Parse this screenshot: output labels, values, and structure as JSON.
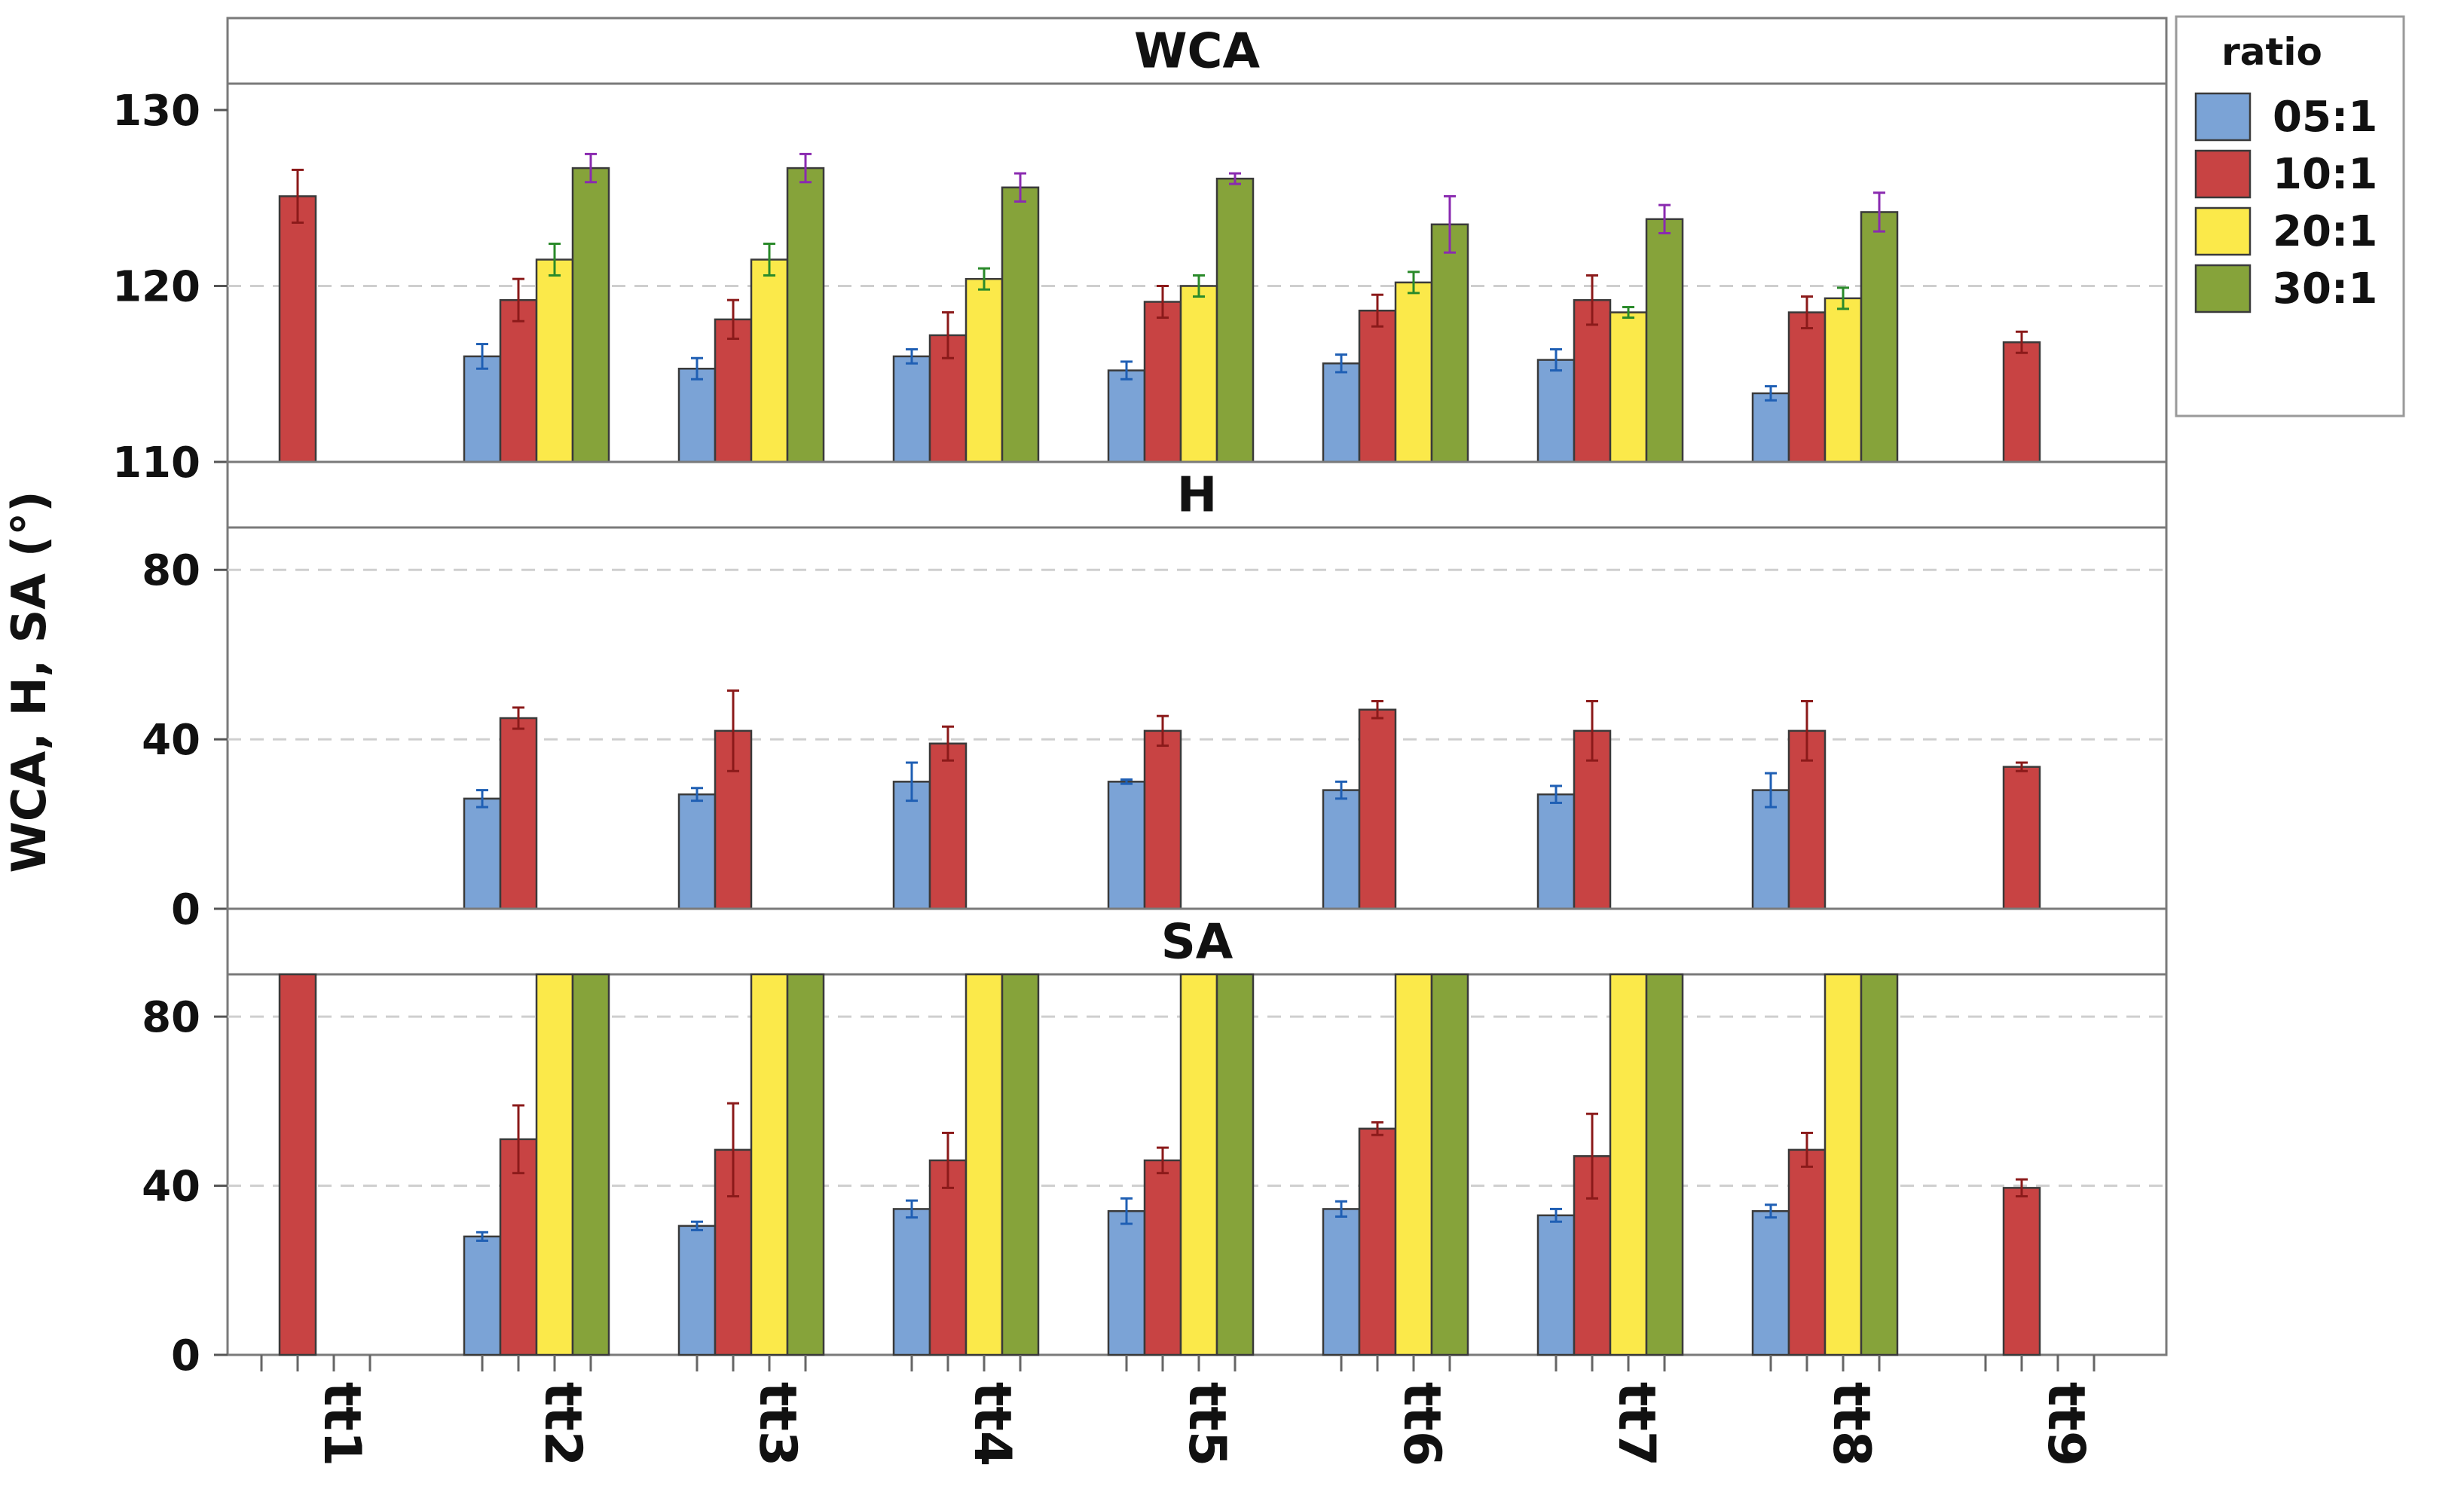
{
  "chart_data": {
    "type": "bar",
    "ylabel": "WCA, H, SA (°)",
    "categories": [
      "tt1",
      "tt2",
      "tt3",
      "tt4",
      "tt5",
      "tt6",
      "tt7",
      "tt8",
      "tt9"
    ],
    "legend": {
      "title": "ratio",
      "placement": "right",
      "entries": [
        {
          "name": "05:1",
          "color": "#7ba3d6",
          "error_color": "#1f5fb4"
        },
        {
          "name": "10:1",
          "color": "#c84343",
          "error_color": "#8b1a1a"
        },
        {
          "name": "20:1",
          "color": "#fbe94a",
          "error_color": "#2a8a2a"
        },
        {
          "name": "30:1",
          "color": "#86a33a",
          "error_color": "#8a2ab0"
        }
      ]
    },
    "panels": [
      {
        "title": "WCA",
        "ylim": [
          110,
          131.5
        ],
        "yticks": [
          110,
          120,
          130
        ],
        "gridlines": [
          120
        ],
        "series": [
          {
            "name": "05:1",
            "values": [
              null,
              116.0,
              115.3,
              116.0,
              115.2,
              115.6,
              115.8,
              113.9,
              null
            ],
            "errors": [
              null,
              0.7,
              0.6,
              0.4,
              0.5,
              0.5,
              0.6,
              0.4,
              null
            ]
          },
          {
            "name": "10:1",
            "values": [
              125.1,
              119.2,
              118.1,
              117.2,
              119.1,
              118.6,
              119.2,
              118.5,
              116.8
            ],
            "errors": [
              1.5,
              1.2,
              1.1,
              1.3,
              0.9,
              0.9,
              1.4,
              0.9,
              0.6
            ]
          },
          {
            "name": "20:1",
            "values": [
              null,
              121.5,
              121.5,
              120.4,
              120.0,
              120.2,
              118.5,
              119.3,
              null
            ],
            "errors": [
              null,
              0.9,
              0.9,
              0.6,
              0.6,
              0.6,
              0.3,
              0.6,
              null
            ]
          },
          {
            "name": "30:1",
            "values": [
              null,
              126.7,
              126.7,
              125.6,
              126.1,
              123.5,
              123.8,
              124.2,
              null
            ],
            "errors": [
              null,
              0.8,
              0.8,
              0.8,
              0.3,
              1.6,
              0.8,
              1.1,
              null
            ]
          }
        ]
      },
      {
        "title": "H",
        "ylim": [
          0,
          90
        ],
        "yticks": [
          0,
          40,
          80
        ],
        "gridlines": [
          40,
          80
        ],
        "series": [
          {
            "name": "05:1",
            "values": [
              null,
              26,
              27,
              30,
              30,
              28,
              27,
              28,
              null
            ],
            "errors": [
              null,
              2,
              1.5,
              4.5,
              0.5,
              2,
              2,
              4,
              null
            ]
          },
          {
            "name": "10:1",
            "values": [
              null,
              45,
              42,
              39,
              42,
              47,
              42,
              42,
              33.5
            ],
            "errors": [
              null,
              2.5,
              9.5,
              4,
              3.5,
              2,
              7,
              7,
              1
            ]
          },
          {
            "name": "20:1",
            "values": [
              null,
              null,
              null,
              null,
              null,
              null,
              null,
              null,
              null
            ],
            "errors": [
              null,
              null,
              null,
              null,
              null,
              null,
              null,
              null,
              null
            ]
          },
          {
            "name": "30:1",
            "values": [
              null,
              null,
              null,
              null,
              null,
              null,
              null,
              null,
              null
            ],
            "errors": [
              null,
              null,
              null,
              null,
              null,
              null,
              null,
              null,
              null
            ]
          }
        ]
      },
      {
        "title": "SA",
        "ylim": [
          0,
          90
        ],
        "yticks": [
          0,
          40,
          80
        ],
        "gridlines": [
          40,
          80
        ],
        "series": [
          {
            "name": "05:1",
            "values": [
              null,
              28,
              30.5,
              34.5,
              34,
              34.5,
              33,
              34,
              null
            ],
            "errors": [
              null,
              1,
              1,
              2,
              3,
              1.8,
              1.5,
              1.5,
              null
            ]
          },
          {
            "name": "10:1",
            "values": [
              90,
              51,
              48.5,
              46,
              46,
              53.5,
              47,
              48.5,
              39.5
            ],
            "errors": [
              null,
              8,
              11,
              6.5,
              3,
              1.5,
              10,
              4,
              2
            ]
          },
          {
            "name": "20:1",
            "values": [
              null,
              90,
              90,
              90,
              90,
              90,
              90,
              90,
              null
            ],
            "errors": [
              null,
              null,
              null,
              null,
              null,
              null,
              null,
              null,
              null
            ]
          },
          {
            "name": "30:1",
            "values": [
              null,
              90,
              90,
              90,
              90,
              90,
              90,
              90,
              null
            ],
            "errors": [
              null,
              null,
              null,
              null,
              null,
              null,
              null,
              null,
              null
            ]
          }
        ]
      }
    ]
  }
}
